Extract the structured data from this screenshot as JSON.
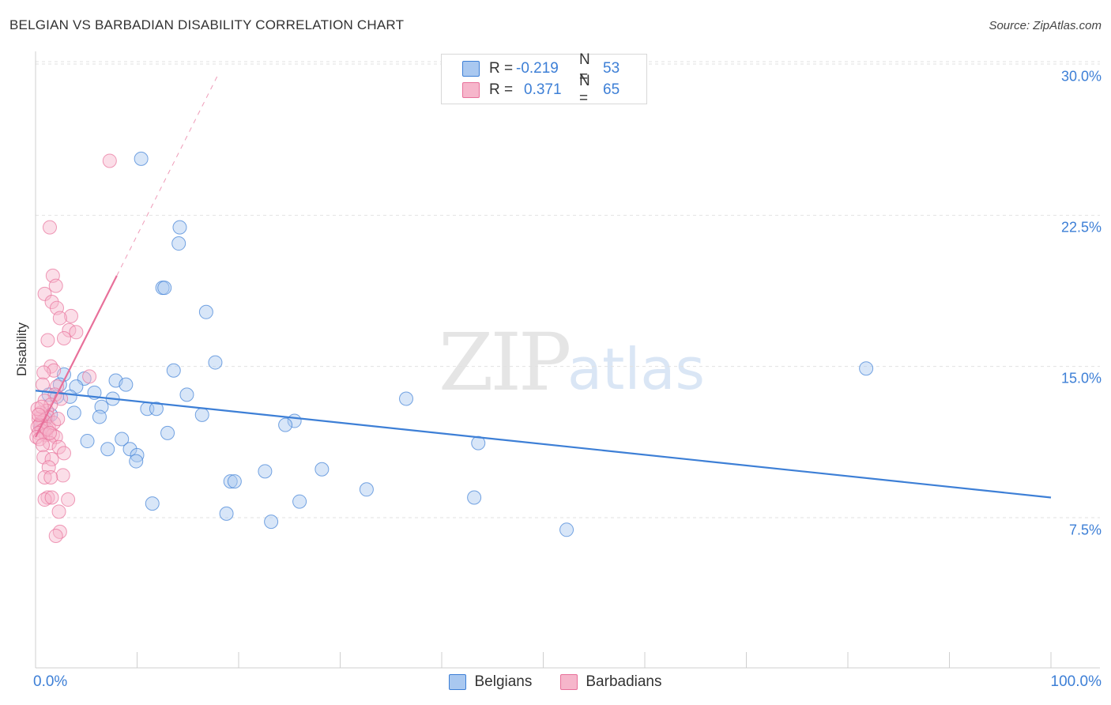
{
  "title": "BELGIAN VS BARBADIAN DISABILITY CORRELATION CHART",
  "source": "Source: ZipAtlas.com",
  "watermark": {
    "zip": "ZIP",
    "atlas": "atlas"
  },
  "colors": {
    "blue": "#3d7fd6",
    "blue_fill": "#a9c8f0",
    "pink": "#e8709a",
    "pink_fill": "#f6b6cb"
  },
  "legend_top": [
    {
      "r_label": "R =",
      "r_value": "-0.219",
      "n_label": "N =",
      "n_value": "53"
    },
    {
      "r_label": "R =",
      "r_value": "0.371",
      "n_label": "N =",
      "n_value": "65"
    }
  ],
  "chart_data": {
    "type": "scatter",
    "title": "BELGIAN VS BARBADIAN DISABILITY CORRELATION CHART",
    "xlabel": "",
    "ylabel": "Disability",
    "xlim": [
      0,
      100
    ],
    "ylim": [
      0,
      31
    ],
    "x_tick_labels": [
      "0.0%",
      "100.0%"
    ],
    "y_ticks": [
      7.5,
      15.0,
      22.5,
      30.0
    ],
    "y_tick_labels": [
      "7.5%",
      "15.0%",
      "22.5%",
      "30.0%"
    ],
    "series": [
      {
        "name": "Belgians",
        "r": -0.219,
        "n": 53,
        "trend": {
          "x0": 0.0,
          "y0": 13.8,
          "x1": 100.0,
          "y1": 8.5,
          "dashed_to": 100.0
        },
        "points": [
          [
            10.4,
            25.3
          ],
          [
            14.2,
            21.9
          ],
          [
            14.1,
            21.1
          ],
          [
            12.5,
            18.9
          ],
          [
            12.7,
            18.9
          ],
          [
            16.8,
            17.7
          ],
          [
            17.7,
            15.2
          ],
          [
            13.6,
            14.8
          ],
          [
            4.8,
            14.4
          ],
          [
            2.8,
            14.6
          ],
          [
            7.9,
            14.3
          ],
          [
            8.9,
            14.1
          ],
          [
            4.0,
            14.0
          ],
          [
            2.4,
            14.1
          ],
          [
            5.8,
            13.7
          ],
          [
            1.3,
            13.6
          ],
          [
            3.4,
            13.5
          ],
          [
            2.1,
            13.5
          ],
          [
            7.6,
            13.4
          ],
          [
            14.9,
            13.6
          ],
          [
            36.5,
            13.4
          ],
          [
            6.5,
            13.0
          ],
          [
            11.0,
            12.9
          ],
          [
            11.9,
            12.9
          ],
          [
            1.5,
            12.6
          ],
          [
            3.8,
            12.7
          ],
          [
            6.3,
            12.5
          ],
          [
            16.4,
            12.6
          ],
          [
            25.5,
            12.3
          ],
          [
            24.6,
            12.1
          ],
          [
            13.0,
            11.7
          ],
          [
            8.5,
            11.4
          ],
          [
            5.1,
            11.3
          ],
          [
            43.6,
            11.2
          ],
          [
            7.1,
            10.9
          ],
          [
            9.3,
            10.9
          ],
          [
            10.0,
            10.6
          ],
          [
            9.9,
            10.3
          ],
          [
            28.2,
            9.9
          ],
          [
            22.6,
            9.8
          ],
          [
            19.2,
            9.3
          ],
          [
            19.6,
            9.3
          ],
          [
            32.6,
            8.9
          ],
          [
            43.2,
            8.5
          ],
          [
            26.0,
            8.3
          ],
          [
            11.5,
            8.2
          ],
          [
            18.8,
            7.7
          ],
          [
            23.2,
            7.3
          ],
          [
            81.8,
            14.9
          ],
          [
            52.3,
            6.9
          ],
          [
            1.0,
            12.4
          ],
          [
            0.7,
            12.2
          ],
          [
            0.5,
            12.0
          ]
        ]
      },
      {
        "name": "Barbadians",
        "r": 0.371,
        "n": 65,
        "trend": {
          "x0": 0.0,
          "y0": 11.5,
          "x1": 8.0,
          "y1": 19.5,
          "dashed_to": 18.0
        },
        "points": [
          [
            7.3,
            25.2
          ],
          [
            1.4,
            21.9
          ],
          [
            1.7,
            19.5
          ],
          [
            2.0,
            19.0
          ],
          [
            0.9,
            18.6
          ],
          [
            1.6,
            18.2
          ],
          [
            2.1,
            17.9
          ],
          [
            3.5,
            17.5
          ],
          [
            2.4,
            17.4
          ],
          [
            3.3,
            16.8
          ],
          [
            4.0,
            16.7
          ],
          [
            2.8,
            16.4
          ],
          [
            1.2,
            16.3
          ],
          [
            1.5,
            15.0
          ],
          [
            1.8,
            14.8
          ],
          [
            0.8,
            14.7
          ],
          [
            5.3,
            14.5
          ],
          [
            0.7,
            14.1
          ],
          [
            2.1,
            14.0
          ],
          [
            1.9,
            13.6
          ],
          [
            2.5,
            13.4
          ],
          [
            0.9,
            13.3
          ],
          [
            1.5,
            13.1
          ],
          [
            1.1,
            12.8
          ],
          [
            0.6,
            12.5
          ],
          [
            0.3,
            12.4
          ],
          [
            1.2,
            12.5
          ],
          [
            0.8,
            12.3
          ],
          [
            0.5,
            12.2
          ],
          [
            0.4,
            12.1
          ],
          [
            0.2,
            12.0
          ],
          [
            0.9,
            11.9
          ],
          [
            1.3,
            12.0
          ],
          [
            0.6,
            11.8
          ],
          [
            0.3,
            11.7
          ],
          [
            1.0,
            11.6
          ],
          [
            0.1,
            11.5
          ],
          [
            0.4,
            11.4
          ],
          [
            1.7,
            11.6
          ],
          [
            2.0,
            11.5
          ],
          [
            1.4,
            11.2
          ],
          [
            0.7,
            11.1
          ],
          [
            2.3,
            11.0
          ],
          [
            2.8,
            10.7
          ],
          [
            0.8,
            10.5
          ],
          [
            1.6,
            10.4
          ],
          [
            1.3,
            10.0
          ],
          [
            2.7,
            9.6
          ],
          [
            0.9,
            9.5
          ],
          [
            1.5,
            9.5
          ],
          [
            1.2,
            8.5
          ],
          [
            0.9,
            8.4
          ],
          [
            3.2,
            8.4
          ],
          [
            1.6,
            8.5
          ],
          [
            2.3,
            7.8
          ],
          [
            2.4,
            6.8
          ],
          [
            2.0,
            6.6
          ],
          [
            0.5,
            12.7
          ],
          [
            1.1,
            11.9
          ],
          [
            0.2,
            12.9
          ],
          [
            1.8,
            12.2
          ],
          [
            0.6,
            13.0
          ],
          [
            2.2,
            12.4
          ],
          [
            0.3,
            12.6
          ],
          [
            1.4,
            11.7
          ]
        ]
      }
    ]
  }
}
